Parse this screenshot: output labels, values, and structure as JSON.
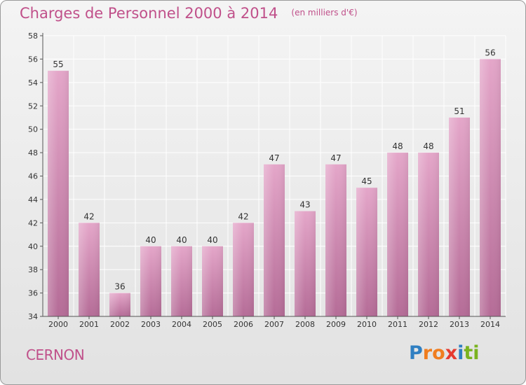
{
  "title": "Charges de Personnel 2000 à 2014",
  "subtitle": "(en milliers d'€)",
  "place": "CERNON",
  "logo": {
    "text": "Proxiti",
    "letters": [
      {
        "ch": "P",
        "color": "#2f7fc2"
      },
      {
        "ch": "r",
        "color": "#f07d1f"
      },
      {
        "ch": "o",
        "color": "#f07d1f"
      },
      {
        "ch": "x",
        "color": "#e53a2f"
      },
      {
        "ch": "i",
        "color": "#2f7fc2"
      },
      {
        "ch": "t",
        "color": "#7ab31f"
      },
      {
        "ch": "i",
        "color": "#7ab31f"
      }
    ]
  },
  "colors": {
    "bar": "#d98bb7",
    "accent": "#c0508a",
    "grid": "#ffffff",
    "axis": "#555555"
  },
  "chart_data": {
    "type": "bar",
    "title": "Charges de Personnel 2000 à 2014",
    "subtitle": "(en milliers d'€)",
    "xlabel": "",
    "ylabel": "",
    "categories": [
      "2000",
      "2001",
      "2002",
      "2003",
      "2004",
      "2005",
      "2006",
      "2007",
      "2008",
      "2009",
      "2010",
      "2011",
      "2012",
      "2013",
      "2014"
    ],
    "values": [
      55,
      42,
      36,
      40,
      40,
      40,
      42,
      47,
      43,
      47,
      45,
      48,
      48,
      51,
      56
    ],
    "ylim": [
      34,
      58
    ],
    "yticks": [
      34,
      36,
      38,
      40,
      42,
      44,
      46,
      48,
      50,
      52,
      54,
      56,
      58
    ],
    "grid": true,
    "data_labels": true
  }
}
